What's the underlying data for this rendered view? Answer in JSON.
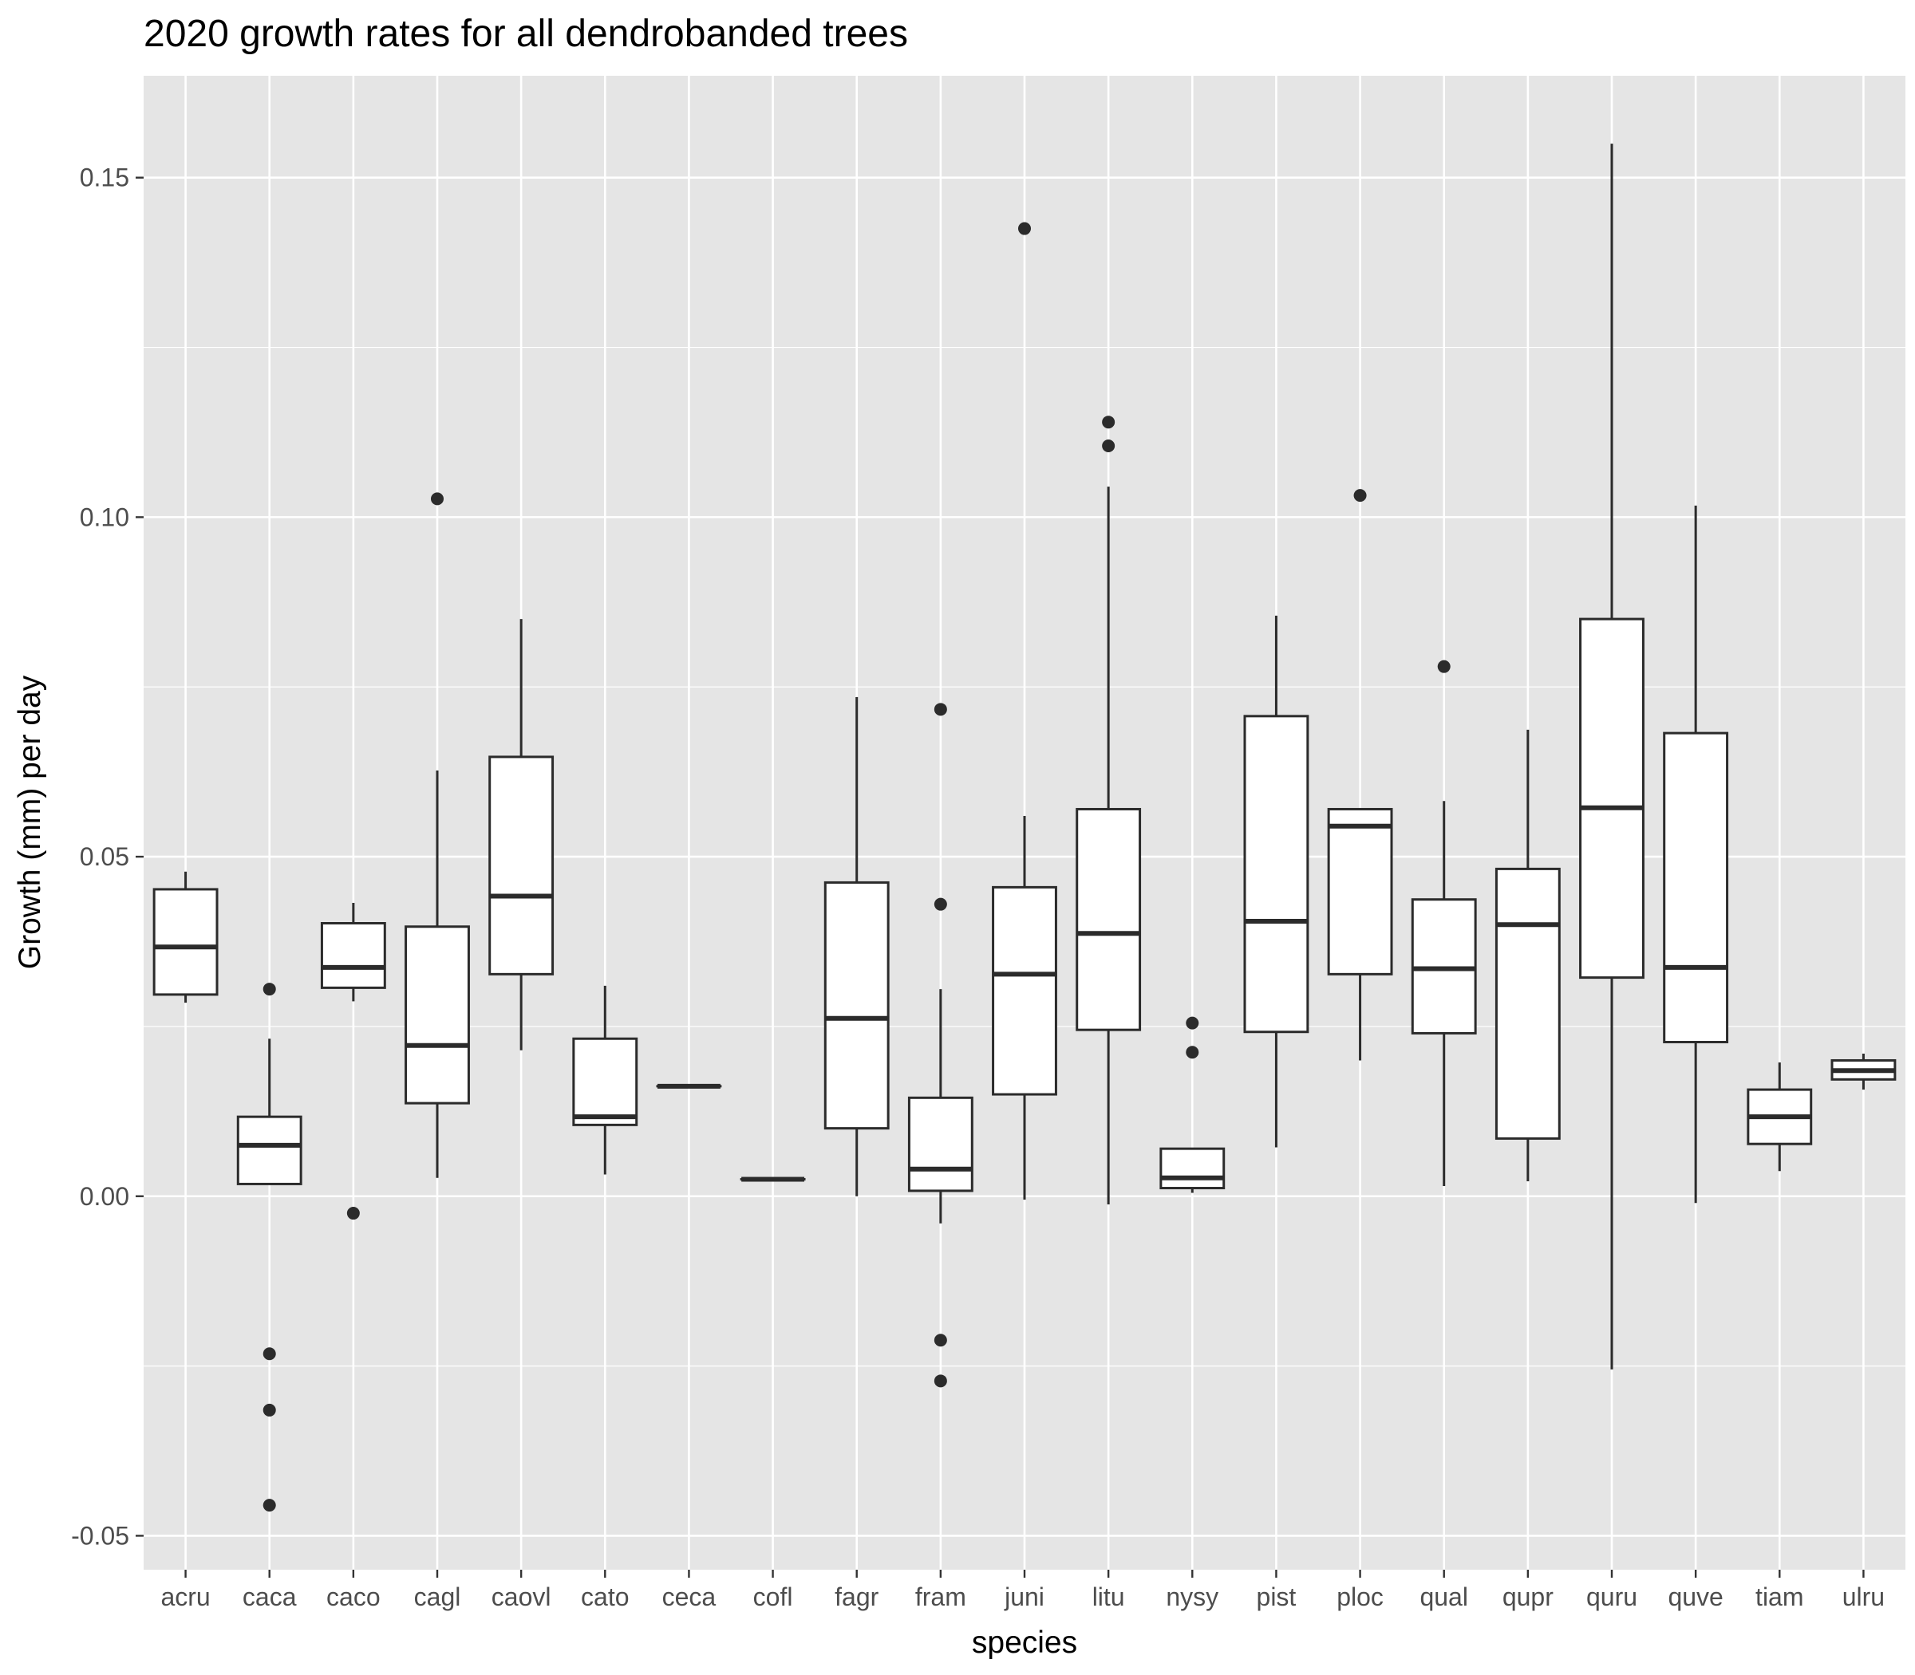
{
  "chart_data": {
    "type": "boxplot",
    "title": "2020 growth rates for all dendrobanded trees",
    "xlabel": "species",
    "ylabel": "Growth (mm) per day",
    "ylim": [
      -0.055,
      0.165
    ],
    "yticks": [
      -0.05,
      0.0,
      0.05,
      0.1,
      0.15
    ],
    "ytick_labels": [
      "-0.05",
      "0.00",
      "0.05",
      "0.10",
      "0.15"
    ],
    "grid": true,
    "colors": {
      "panel": "#e5e5e5",
      "grid": "#ffffff",
      "box_fill": "#ffffff",
      "box_line": "#2b2b2b",
      "point": "#2b2b2b"
    },
    "categories": [
      "acru",
      "caca",
      "caco",
      "cagl",
      "caovl",
      "cato",
      "ceca",
      "cofl",
      "fagr",
      "fram",
      "juni",
      "litu",
      "nysy",
      "pist",
      "ploc",
      "qual",
      "qupr",
      "quru",
      "quve",
      "tiam",
      "ulru"
    ],
    "boxes": [
      {
        "name": "acru",
        "whisker_low": 0.0285,
        "q1": 0.0297,
        "median": 0.0367,
        "q3": 0.0452,
        "whisker_high": 0.0478,
        "outliers": []
      },
      {
        "name": "caca",
        "whisker_low": 0.0018,
        "q1": 0.0018,
        "median": 0.0075,
        "q3": 0.0117,
        "whisker_high": 0.0232,
        "outliers": [
          0.0305,
          -0.0232,
          -0.0315,
          -0.0455
        ]
      },
      {
        "name": "caco",
        "whisker_low": 0.0287,
        "q1": 0.0307,
        "median": 0.0337,
        "q3": 0.0402,
        "whisker_high": 0.0432,
        "outliers": [
          -0.0025
        ]
      },
      {
        "name": "cagl",
        "whisker_low": 0.0027,
        "q1": 0.0137,
        "median": 0.0222,
        "q3": 0.0397,
        "whisker_high": 0.0627,
        "outliers": [
          0.1027
        ]
      },
      {
        "name": "caovl",
        "whisker_low": 0.0215,
        "q1": 0.0327,
        "median": 0.0442,
        "q3": 0.0647,
        "whisker_high": 0.085,
        "outliers": []
      },
      {
        "name": "cato",
        "whisker_low": 0.0032,
        "q1": 0.0105,
        "median": 0.0117,
        "q3": 0.0232,
        "whisker_high": 0.031,
        "outliers": []
      },
      {
        "name": "ceca",
        "whisker_low": 0.0162,
        "q1": 0.0162,
        "median": 0.0162,
        "q3": 0.0162,
        "whisker_high": 0.0162,
        "outliers": []
      },
      {
        "name": "cofl",
        "whisker_low": 0.0025,
        "q1": 0.0025,
        "median": 0.0025,
        "q3": 0.0025,
        "whisker_high": 0.0025,
        "outliers": []
      },
      {
        "name": "fagr",
        "whisker_low": 0.0,
        "q1": 0.01,
        "median": 0.0262,
        "q3": 0.0462,
        "whisker_high": 0.0735,
        "outliers": []
      },
      {
        "name": "fram",
        "whisker_low": -0.004,
        "q1": 0.0008,
        "median": 0.004,
        "q3": 0.0145,
        "whisker_high": 0.0305,
        "outliers": [
          0.0717,
          0.043,
          -0.0212,
          -0.0272
        ]
      },
      {
        "name": "juni",
        "whisker_low": -0.0005,
        "q1": 0.015,
        "median": 0.0327,
        "q3": 0.0455,
        "whisker_high": 0.056,
        "outliers": [
          0.1425
        ]
      },
      {
        "name": "litu",
        "whisker_low": -0.0012,
        "q1": 0.0245,
        "median": 0.0387,
        "q3": 0.057,
        "whisker_high": 0.1045,
        "outliers": [
          0.114,
          0.1105
        ]
      },
      {
        "name": "nysy",
        "whisker_low": 0.0005,
        "q1": 0.0012,
        "median": 0.0027,
        "q3": 0.007,
        "whisker_high": 0.007,
        "outliers": [
          0.0255,
          0.0212
        ]
      },
      {
        "name": "pist",
        "whisker_low": 0.0072,
        "q1": 0.0242,
        "median": 0.0405,
        "q3": 0.0707,
        "whisker_high": 0.0855,
        "outliers": []
      },
      {
        "name": "ploc",
        "whisker_low": 0.02,
        "q1": 0.0327,
        "median": 0.0545,
        "q3": 0.057,
        "whisker_high": 0.057,
        "outliers": [
          0.1032
        ]
      },
      {
        "name": "qual",
        "whisker_low": 0.0015,
        "q1": 0.024,
        "median": 0.0335,
        "q3": 0.0437,
        "whisker_high": 0.0582,
        "outliers": [
          0.078
        ]
      },
      {
        "name": "qupr",
        "whisker_low": 0.0022,
        "q1": 0.0085,
        "median": 0.04,
        "q3": 0.0482,
        "whisker_high": 0.0687,
        "outliers": []
      },
      {
        "name": "quru",
        "whisker_low": -0.0255,
        "q1": 0.0322,
        "median": 0.0572,
        "q3": 0.085,
        "whisker_high": 0.155,
        "outliers": []
      },
      {
        "name": "quve",
        "whisker_low": -0.001,
        "q1": 0.0227,
        "median": 0.0337,
        "q3": 0.0682,
        "whisker_high": 0.1017,
        "outliers": []
      },
      {
        "name": "tiam",
        "whisker_low": 0.0037,
        "q1": 0.0077,
        "median": 0.0117,
        "q3": 0.0157,
        "whisker_high": 0.0197,
        "outliers": []
      },
      {
        "name": "ulru",
        "whisker_low": 0.0157,
        "q1": 0.0172,
        "median": 0.0185,
        "q3": 0.02,
        "whisker_high": 0.021,
        "outliers": []
      }
    ]
  }
}
